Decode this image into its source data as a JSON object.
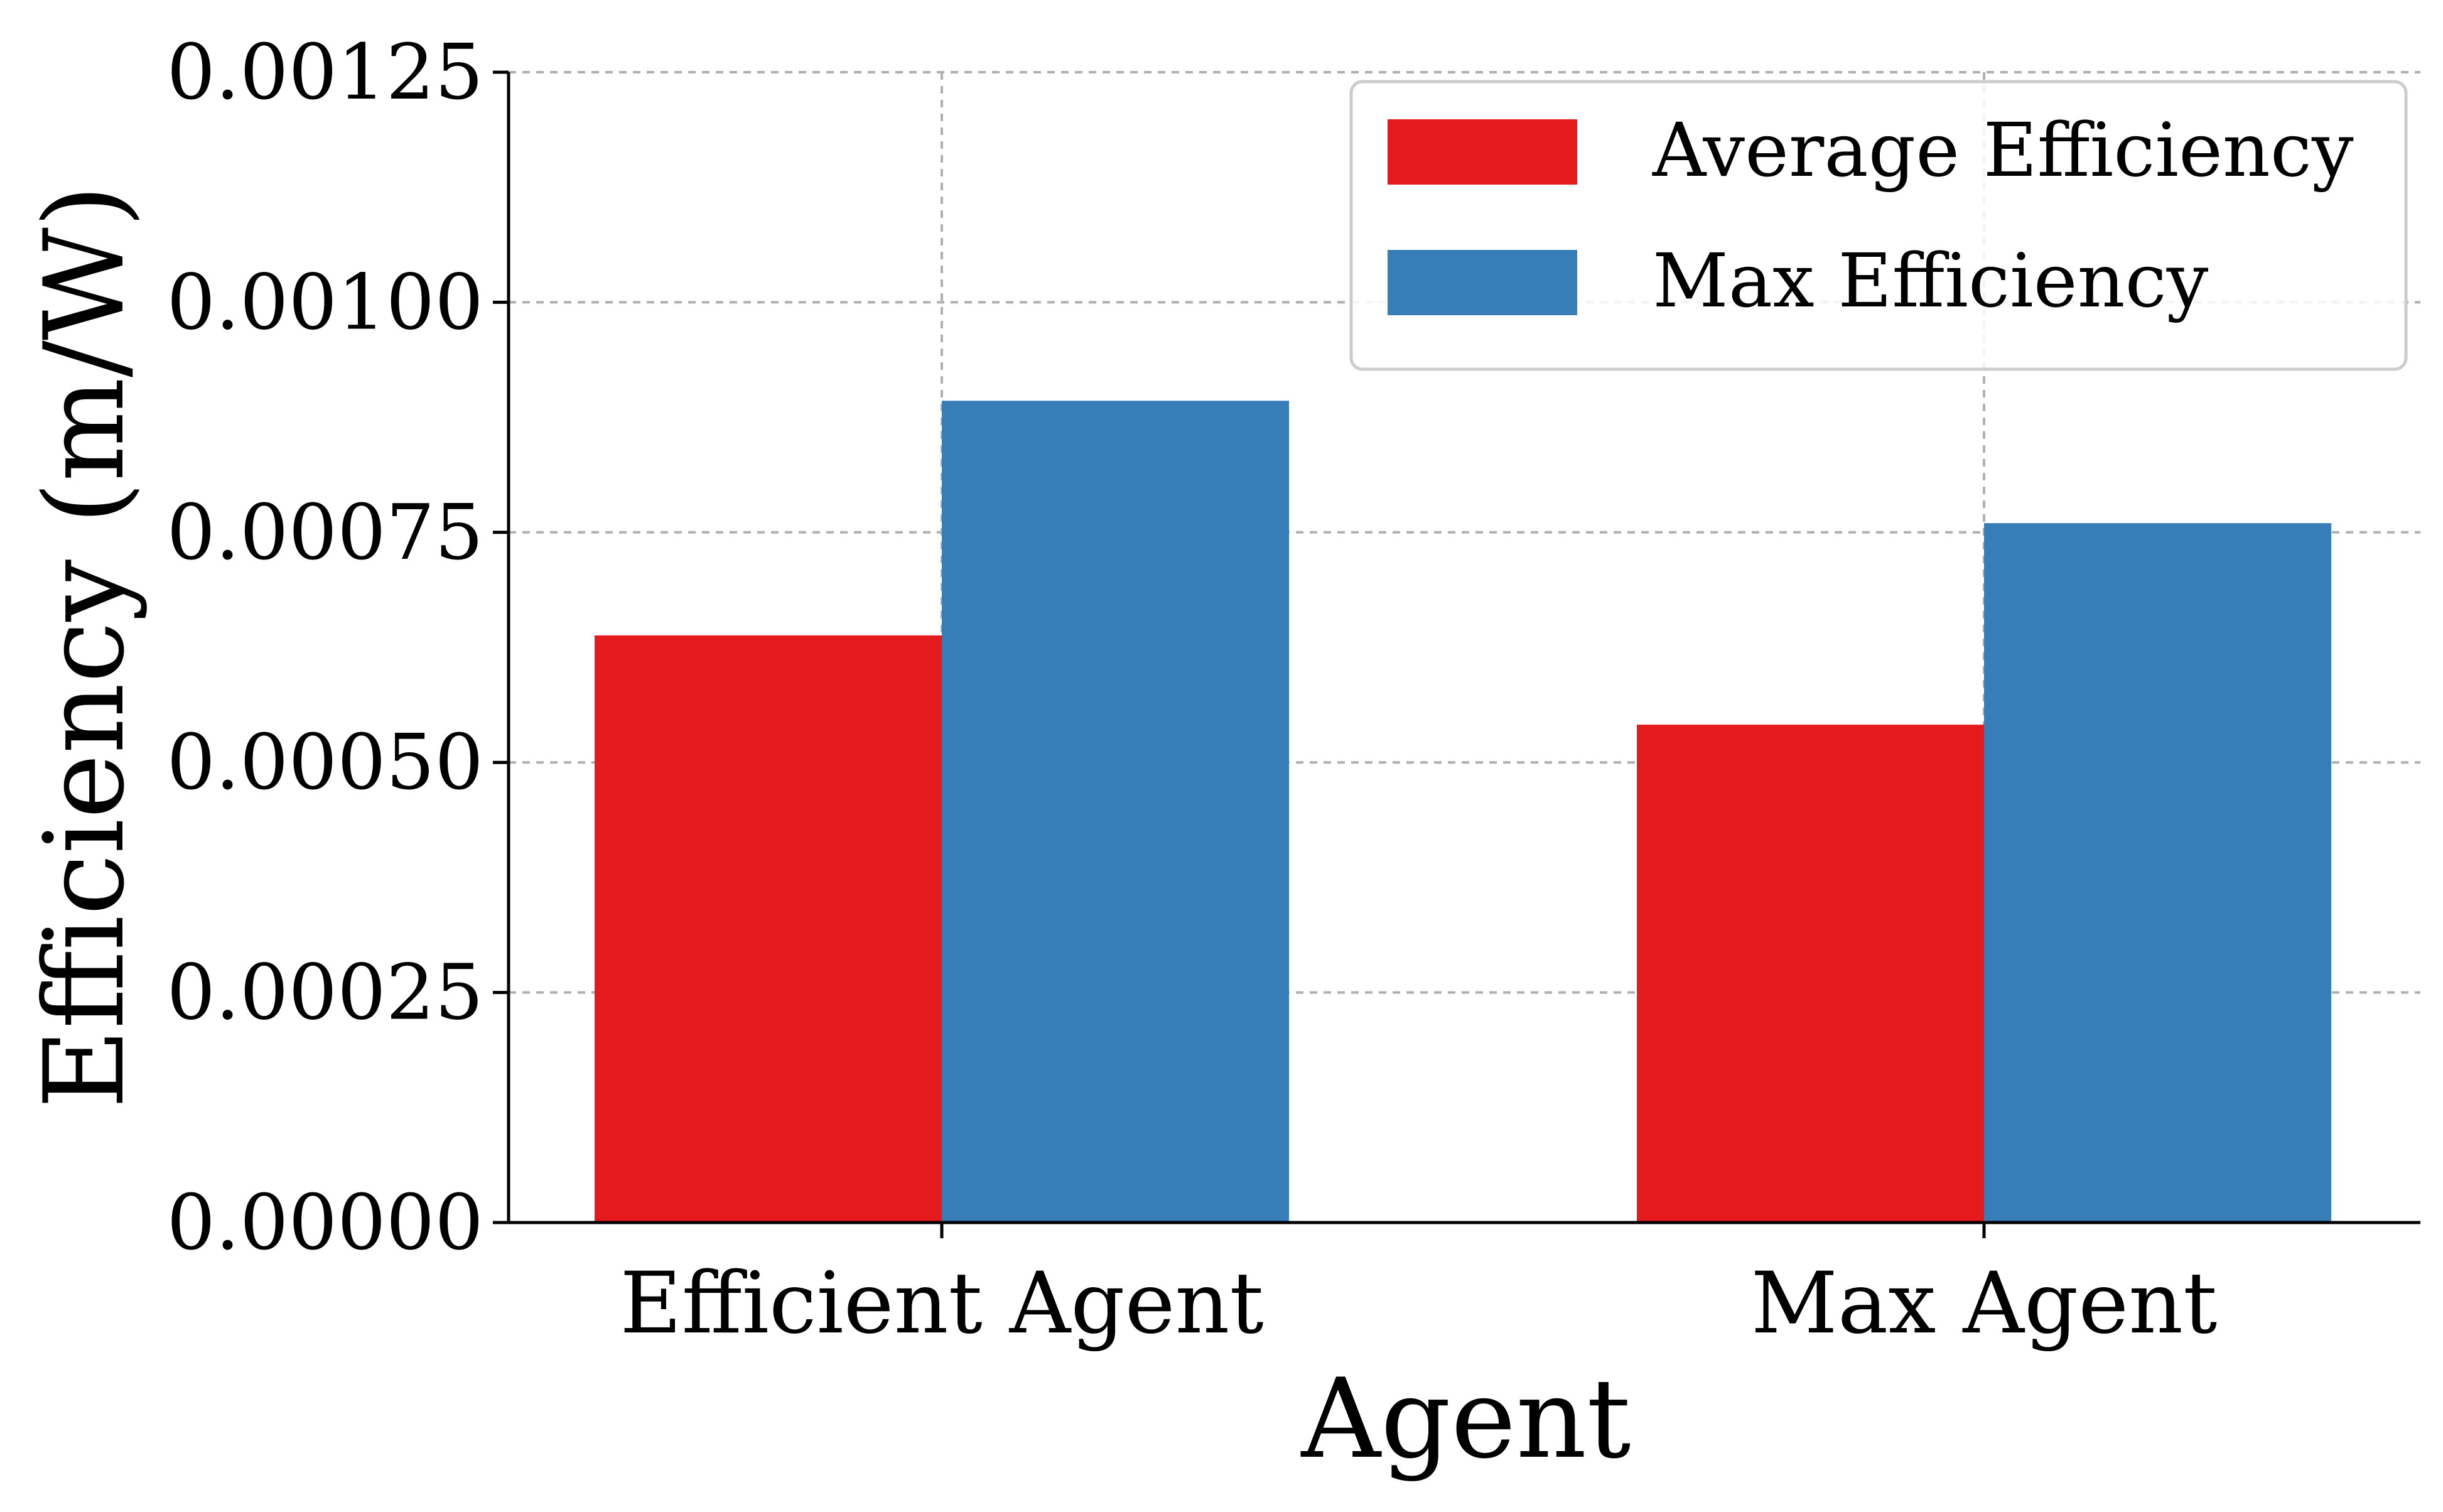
{
  "chart_data": {
    "type": "bar",
    "title": "",
    "xlabel": "Agent",
    "ylabel": "Efficiency (m/W)",
    "categories": [
      "Efficient Agent",
      "Max Agent"
    ],
    "series": [
      {
        "name": "Average Efficiency",
        "color": "#e41a1c",
        "values": [
          0.000638,
          0.000541
        ]
      },
      {
        "name": "Max Efficiency",
        "color": "#377eb8",
        "values": [
          0.000893,
          0.00076
        ]
      }
    ],
    "ylim": [
      0,
      0.00125
    ],
    "yticks": [
      0,
      0.00025,
      0.0005,
      0.00075,
      0.001,
      0.00125
    ],
    "ytick_labels": [
      "0.00000",
      "0.00025",
      "0.00050",
      "0.00075",
      "0.00100",
      "0.00125"
    ],
    "grid": true,
    "legend_position": "top-right"
  }
}
